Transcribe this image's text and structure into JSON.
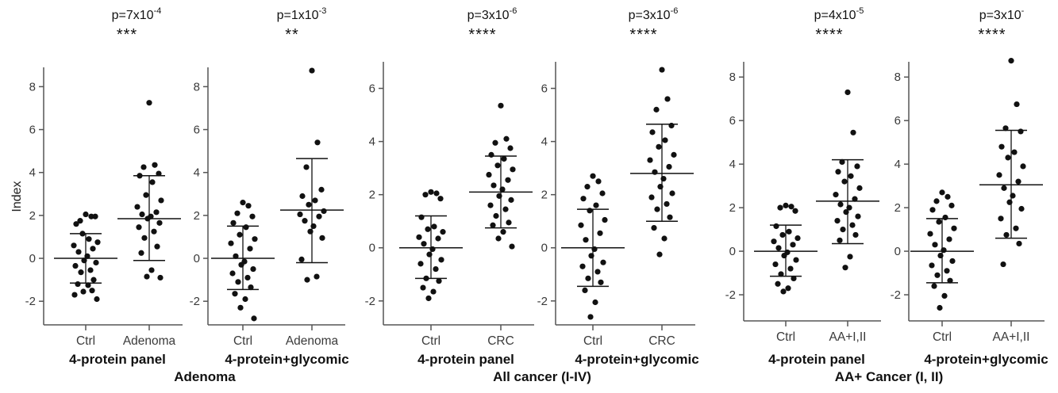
{
  "y_axis_label": "Index",
  "groups": [
    "Adenoma",
    "All cancer (I-IV)",
    "AA+ Cancer (I, II)"
  ],
  "chart_data": [
    {
      "type": "scatter",
      "group": "Adenoma",
      "subtitle": "4-protein panel",
      "categories": [
        "Ctrl",
        "Adenoma"
      ],
      "p_value": {
        "base": "p=7x10",
        "exp": "-4"
      },
      "significance": "***",
      "ylabel": "Index",
      "yticks": [
        -2,
        0,
        2,
        4,
        6,
        8
      ],
      "ylim": [
        -3.1,
        8.9
      ],
      "series": [
        {
          "category": "Ctrl",
          "mean": 0.0,
          "upper": 1.15,
          "lower": -1.15,
          "values": [
            2.05,
            1.95,
            1.75,
            1.95,
            1.6,
            0.9,
            1.15,
            0.75,
            0.6,
            0.45,
            0.3,
            0.1,
            -0.1,
            -0.2,
            -0.35,
            -0.55,
            -0.65,
            -1.0,
            -1.2,
            -1.25,
            -1.55,
            -1.9,
            -1.7,
            -1.5
          ]
        },
        {
          "category": "Adenoma",
          "mean": 1.85,
          "upper": 3.85,
          "lower": -0.1,
          "values": [
            7.25,
            4.35,
            4.25,
            3.95,
            3.85,
            3.55,
            2.95,
            2.7,
            2.4,
            2.15,
            2.05,
            1.95,
            1.85,
            1.65,
            1.45,
            1.25,
            0.95,
            0.55,
            0.25,
            -0.55,
            -0.85,
            -0.9
          ]
        }
      ]
    },
    {
      "type": "scatter",
      "group": "Adenoma",
      "subtitle": "4-protein+glycomic",
      "categories": [
        "Ctrl",
        "Adenoma"
      ],
      "p_value": {
        "base": "p=1x10",
        "exp": "-3"
      },
      "significance": "**",
      "yticks": [
        -2,
        0,
        2,
        4,
        6,
        8
      ],
      "ylim": [
        -3.1,
        8.9
      ],
      "series": [
        {
          "category": "Ctrl",
          "mean": 0.0,
          "upper": 1.5,
          "lower": -1.45,
          "values": [
            2.6,
            2.45,
            2.1,
            1.95,
            1.65,
            1.45,
            1.1,
            0.9,
            0.7,
            0.45,
            0.1,
            -0.15,
            -0.3,
            -0.5,
            -0.7,
            -0.9,
            -1.1,
            -1.35,
            -1.65,
            -1.9,
            -2.3,
            -2.8
          ]
        },
        {
          "category": "Adenoma",
          "mean": 2.25,
          "upper": 4.65,
          "lower": -0.2,
          "values": [
            8.75,
            5.4,
            4.25,
            3.2,
            2.9,
            2.7,
            2.5,
            2.2,
            2.05,
            1.95,
            1.75,
            1.5,
            1.25,
            0.95,
            -0.05,
            -0.85,
            -1.0
          ]
        }
      ]
    },
    {
      "type": "scatter",
      "group": "All cancer (I-IV)",
      "subtitle": "4-protein panel",
      "categories": [
        "Ctrl",
        "CRC"
      ],
      "p_value": {
        "base": "p=3x10",
        "exp": "-6"
      },
      "significance": "****",
      "yticks": [
        -2,
        0,
        2,
        4,
        6
      ],
      "ylim": [
        -2.9,
        7.0
      ],
      "series": [
        {
          "category": "Ctrl",
          "mean": 0.0,
          "upper": 1.2,
          "lower": -1.15,
          "values": [
            2.1,
            2.05,
            2.0,
            1.85,
            1.15,
            0.8,
            0.7,
            0.6,
            0.4,
            0.35,
            0.15,
            -0.05,
            -0.25,
            -0.45,
            -0.6,
            -0.8,
            -1.15,
            -1.25,
            -1.5,
            -1.65,
            -1.9
          ]
        },
        {
          "category": "CRC",
          "mean": 2.1,
          "upper": 3.45,
          "lower": 0.75,
          "values": [
            5.35,
            4.1,
            3.95,
            3.75,
            3.5,
            3.35,
            3.1,
            2.95,
            2.75,
            2.55,
            2.35,
            2.2,
            1.95,
            1.8,
            1.6,
            1.45,
            1.2,
            0.95,
            0.85,
            0.6,
            0.35,
            0.05
          ]
        }
      ]
    },
    {
      "type": "scatter",
      "group": "All cancer (I-IV)",
      "subtitle": "4-protein+glycomic",
      "categories": [
        "Ctrl",
        "CRC"
      ],
      "p_value": {
        "base": "p=3x10",
        "exp": "-6"
      },
      "significance": "****",
      "yticks": [
        -2,
        0,
        2,
        4,
        6
      ],
      "ylim": [
        -2.9,
        7.0
      ],
      "series": [
        {
          "category": "Ctrl",
          "mean": 0.0,
          "upper": 1.45,
          "lower": -1.45,
          "values": [
            2.7,
            2.5,
            2.3,
            2.05,
            1.85,
            1.6,
            1.4,
            1.05,
            0.85,
            0.55,
            0.3,
            -0.05,
            -0.3,
            -0.55,
            -0.7,
            -0.9,
            -1.15,
            -1.3,
            -1.6,
            -2.05,
            -2.6
          ]
        },
        {
          "category": "CRC",
          "mean": 2.8,
          "upper": 4.65,
          "lower": 1.0,
          "values": [
            6.7,
            5.6,
            5.2,
            4.6,
            4.35,
            4.05,
            3.8,
            3.5,
            3.3,
            3.05,
            2.85,
            2.6,
            2.3,
            2.05,
            1.9,
            1.65,
            1.45,
            1.15,
            0.75,
            0.35,
            -0.25
          ]
        }
      ]
    },
    {
      "type": "scatter",
      "group": "AA+ Cancer (I, II)",
      "subtitle": "4-protein panel",
      "categories": [
        "Ctrl",
        "AA+I,II"
      ],
      "p_value": {
        "base": "p=4x10",
        "exp": "-5"
      },
      "significance": "****",
      "yticks": [
        -2,
        0,
        2,
        4,
        6,
        8
      ],
      "ylim": [
        -3.2,
        8.7
      ],
      "series": [
        {
          "category": "Ctrl",
          "mean": 0.0,
          "upper": 1.2,
          "lower": -1.15,
          "values": [
            2.1,
            2.05,
            2.0,
            1.85,
            1.15,
            0.9,
            0.75,
            0.6,
            0.45,
            0.3,
            0.15,
            -0.05,
            -0.2,
            -0.4,
            -0.6,
            -0.8,
            -1.05,
            -1.25,
            -1.5,
            -1.7,
            -1.85
          ]
        },
        {
          "category": "AA+I,II",
          "mean": 2.3,
          "upper": 4.2,
          "lower": 0.35,
          "values": [
            7.3,
            5.45,
            4.1,
            3.9,
            3.65,
            3.45,
            3.2,
            2.9,
            2.6,
            2.4,
            2.15,
            2.0,
            1.8,
            1.6,
            1.4,
            1.2,
            1.0,
            0.75,
            0.5,
            -0.25,
            -0.75
          ]
        }
      ]
    },
    {
      "type": "scatter",
      "group": "AA+ Cancer (I, II)",
      "subtitle": "4-protein+glycomic",
      "categories": [
        "Ctrl",
        "AA+I,II"
      ],
      "p_value": {
        "base": "p=3x10",
        "exp": "-"
      },
      "significance": "****",
      "yticks": [
        -2,
        0,
        2,
        4,
        6,
        8
      ],
      "ylim": [
        -3.2,
        8.7
      ],
      "series": [
        {
          "category": "Ctrl",
          "mean": 0.0,
          "upper": 1.5,
          "lower": -1.45,
          "values": [
            2.7,
            2.5,
            2.3,
            2.1,
            1.9,
            1.55,
            1.35,
            1.05,
            0.8,
            0.55,
            0.3,
            0.05,
            -0.2,
            -0.45,
            -0.65,
            -0.9,
            -1.1,
            -1.35,
            -1.6,
            -2.05,
            -2.6
          ]
        },
        {
          "category": "AA+I,II",
          "mean": 3.05,
          "upper": 5.55,
          "lower": 0.6,
          "values": [
            8.75,
            6.75,
            5.65,
            5.5,
            4.8,
            4.55,
            4.3,
            3.9,
            3.5,
            3.2,
            2.9,
            2.55,
            2.25,
            1.95,
            1.5,
            1.05,
            0.75,
            0.35,
            -0.6
          ]
        }
      ]
    }
  ]
}
